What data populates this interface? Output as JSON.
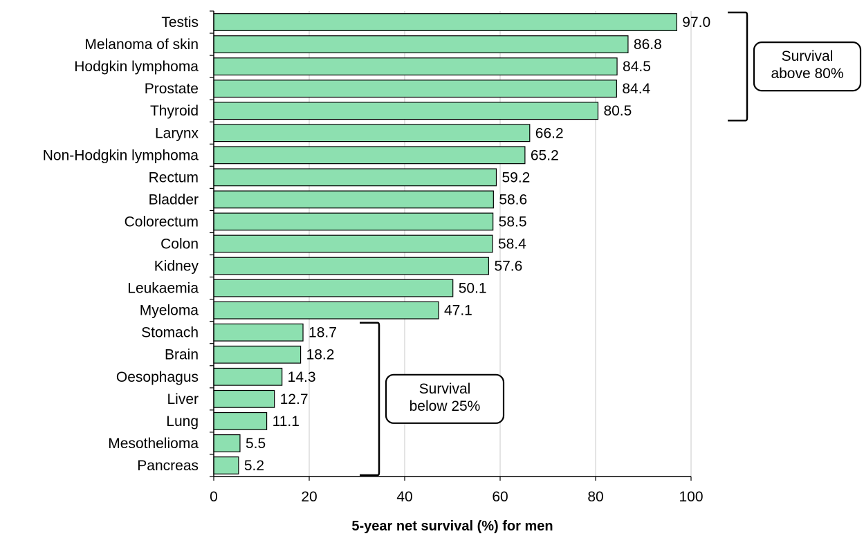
{
  "chart_data": {
    "type": "bar",
    "orientation": "horizontal",
    "categories": [
      "Testis",
      "Melanoma of skin",
      "Hodgkin lymphoma",
      "Prostate",
      "Thyroid",
      "Larynx",
      "Non-Hodgkin lymphoma",
      "Rectum",
      "Bladder",
      "Colorectum",
      "Colon",
      "Kidney",
      "Leukaemia",
      "Myeloma",
      "Stomach",
      "Brain",
      "Oesophagus",
      "Liver",
      "Lung",
      "Mesothelioma",
      "Pancreas"
    ],
    "values": [
      97.0,
      86.8,
      84.5,
      84.4,
      80.5,
      66.2,
      65.2,
      59.2,
      58.6,
      58.5,
      58.4,
      57.6,
      50.1,
      47.1,
      18.7,
      18.2,
      14.3,
      12.7,
      11.1,
      5.5,
      5.2
    ],
    "value_labels": [
      "97.0",
      "86.8",
      "84.5",
      "84.4",
      "80.5",
      "66.2",
      "65.2",
      "59.2",
      "58.6",
      "58.5",
      "58.4",
      "57.6",
      "50.1",
      "47.1",
      "18.7",
      "18.2",
      "14.3",
      "12.7",
      "11.1",
      "5.5",
      "5.2"
    ],
    "xlabel": "5-year net survival (%) for men",
    "ylabel": "",
    "xlim": [
      0,
      100
    ],
    "xticks": [
      0,
      20,
      40,
      60,
      80,
      100
    ],
    "grid": "vertical",
    "bar_color": "#8DE0B0",
    "bar_edge_color": "#000000",
    "annotations": [
      {
        "text_lines": [
          "Survival",
          "above 80%"
        ],
        "brackets_categories": [
          "Testis",
          "Thyroid"
        ]
      },
      {
        "text_lines": [
          "Survival",
          "below 25%"
        ],
        "brackets_categories": [
          "Stomach",
          "Pancreas"
        ]
      }
    ]
  }
}
